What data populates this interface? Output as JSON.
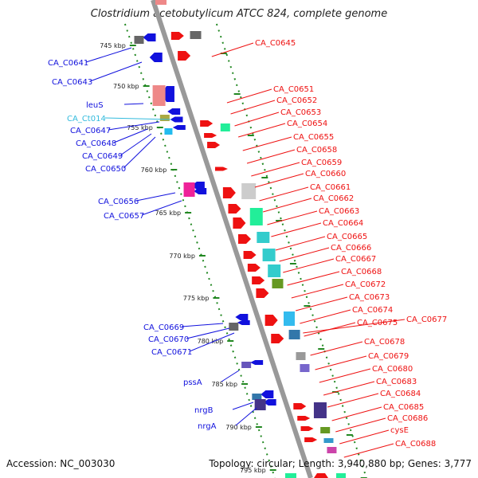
{
  "title": "Clostridium acetobutylicum ATCC 824, complete genome",
  "footer": {
    "accession": "Accession: NC_003030",
    "topology": "Topology: circular; Length: 3,940,880 bp; Genes: 3,777"
  },
  "colors": {
    "forward_gene": "#ee1111",
    "reverse_gene": "#1111dd",
    "tick_dotted": "#228822",
    "backbone": "#999999",
    "rna_label": "#33bbdd"
  },
  "scale_ticks_kbp": [
    "745 kbp",
    "750 kbp",
    "755 kbp",
    "760 kbp",
    "765 kbp",
    "770 kbp",
    "775 kbp",
    "780 kbp",
    "785 kbp",
    "790 kbp",
    "795 kbp"
  ],
  "left_labels": [
    {
      "text": "CA_C0641",
      "color": "#1111dd"
    },
    {
      "text": "CA_C0643",
      "color": "#1111dd"
    },
    {
      "text": "leuS",
      "color": "#1111dd"
    },
    {
      "text": "CA_Ct014",
      "color": "#33bbdd"
    },
    {
      "text": "CA_C0647",
      "color": "#1111dd"
    },
    {
      "text": "CA_C0648",
      "color": "#1111dd"
    },
    {
      "text": "CA_C0649",
      "color": "#1111dd"
    },
    {
      "text": "CA_C0650",
      "color": "#1111dd"
    },
    {
      "text": "CA_C0656",
      "color": "#1111dd"
    },
    {
      "text": "CA_C0657",
      "color": "#1111dd"
    },
    {
      "text": "CA_C0669",
      "color": "#1111dd"
    },
    {
      "text": "CA_C0670",
      "color": "#1111dd"
    },
    {
      "text": "CA_C0671",
      "color": "#1111dd"
    },
    {
      "text": "pssA",
      "color": "#1111dd"
    },
    {
      "text": "nrgB",
      "color": "#1111dd"
    },
    {
      "text": "nrgA",
      "color": "#1111dd"
    }
  ],
  "right_labels": [
    "CA_C0645",
    "CA_C0651",
    "CA_C0652",
    "CA_C0653",
    "CA_C0654",
    "CA_C0655",
    "CA_C0658",
    "CA_C0659",
    "CA_C0660",
    "CA_C0661",
    "CA_C0662",
    "CA_C0663",
    "CA_C0664",
    "CA_C0665",
    "CA_C0666",
    "CA_C0667",
    "CA_C0668",
    "CA_C0672",
    "CA_C0673",
    "CA_C0674",
    "CA_C0675",
    "CA_C0677",
    "CA_C0678",
    "CA_C0679",
    "CA_C0680",
    "CA_C0683",
    "CA_C0684",
    "CA_C0685",
    "CA_C0686",
    "cysE",
    "CA_C0688"
  ]
}
